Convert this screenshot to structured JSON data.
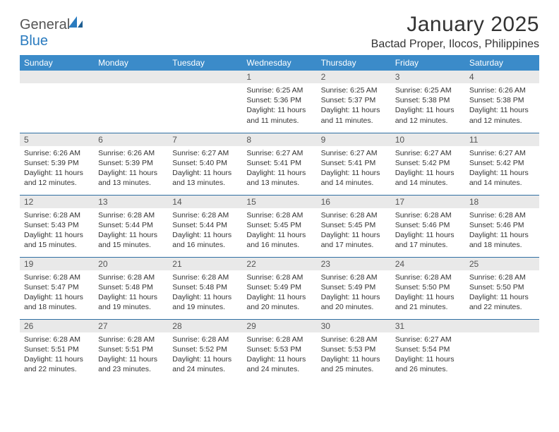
{
  "brand": {
    "part1": "General",
    "part2": "Blue"
  },
  "title": "January 2025",
  "location": "Bactad Proper, Ilocos, Philippines",
  "colors": {
    "header_bg": "#3b8bc9",
    "header_fg": "#ffffff",
    "daynum_bg": "#e9e9e9",
    "rule": "#2f6fa3",
    "logo_blue": "#2a7bbf",
    "text": "#333333"
  },
  "day_headers": [
    "Sunday",
    "Monday",
    "Tuesday",
    "Wednesday",
    "Thursday",
    "Friday",
    "Saturday"
  ],
  "weeks": [
    [
      null,
      null,
      null,
      {
        "n": "1",
        "sr": "Sunrise: 6:25 AM",
        "ss": "Sunset: 5:36 PM",
        "d1": "Daylight: 11 hours",
        "d2": "and 11 minutes."
      },
      {
        "n": "2",
        "sr": "Sunrise: 6:25 AM",
        "ss": "Sunset: 5:37 PM",
        "d1": "Daylight: 11 hours",
        "d2": "and 11 minutes."
      },
      {
        "n": "3",
        "sr": "Sunrise: 6:25 AM",
        "ss": "Sunset: 5:38 PM",
        "d1": "Daylight: 11 hours",
        "d2": "and 12 minutes."
      },
      {
        "n": "4",
        "sr": "Sunrise: 6:26 AM",
        "ss": "Sunset: 5:38 PM",
        "d1": "Daylight: 11 hours",
        "d2": "and 12 minutes."
      }
    ],
    [
      {
        "n": "5",
        "sr": "Sunrise: 6:26 AM",
        "ss": "Sunset: 5:39 PM",
        "d1": "Daylight: 11 hours",
        "d2": "and 12 minutes."
      },
      {
        "n": "6",
        "sr": "Sunrise: 6:26 AM",
        "ss": "Sunset: 5:39 PM",
        "d1": "Daylight: 11 hours",
        "d2": "and 13 minutes."
      },
      {
        "n": "7",
        "sr": "Sunrise: 6:27 AM",
        "ss": "Sunset: 5:40 PM",
        "d1": "Daylight: 11 hours",
        "d2": "and 13 minutes."
      },
      {
        "n": "8",
        "sr": "Sunrise: 6:27 AM",
        "ss": "Sunset: 5:41 PM",
        "d1": "Daylight: 11 hours",
        "d2": "and 13 minutes."
      },
      {
        "n": "9",
        "sr": "Sunrise: 6:27 AM",
        "ss": "Sunset: 5:41 PM",
        "d1": "Daylight: 11 hours",
        "d2": "and 14 minutes."
      },
      {
        "n": "10",
        "sr": "Sunrise: 6:27 AM",
        "ss": "Sunset: 5:42 PM",
        "d1": "Daylight: 11 hours",
        "d2": "and 14 minutes."
      },
      {
        "n": "11",
        "sr": "Sunrise: 6:27 AM",
        "ss": "Sunset: 5:42 PM",
        "d1": "Daylight: 11 hours",
        "d2": "and 14 minutes."
      }
    ],
    [
      {
        "n": "12",
        "sr": "Sunrise: 6:28 AM",
        "ss": "Sunset: 5:43 PM",
        "d1": "Daylight: 11 hours",
        "d2": "and 15 minutes."
      },
      {
        "n": "13",
        "sr": "Sunrise: 6:28 AM",
        "ss": "Sunset: 5:44 PM",
        "d1": "Daylight: 11 hours",
        "d2": "and 15 minutes."
      },
      {
        "n": "14",
        "sr": "Sunrise: 6:28 AM",
        "ss": "Sunset: 5:44 PM",
        "d1": "Daylight: 11 hours",
        "d2": "and 16 minutes."
      },
      {
        "n": "15",
        "sr": "Sunrise: 6:28 AM",
        "ss": "Sunset: 5:45 PM",
        "d1": "Daylight: 11 hours",
        "d2": "and 16 minutes."
      },
      {
        "n": "16",
        "sr": "Sunrise: 6:28 AM",
        "ss": "Sunset: 5:45 PM",
        "d1": "Daylight: 11 hours",
        "d2": "and 17 minutes."
      },
      {
        "n": "17",
        "sr": "Sunrise: 6:28 AM",
        "ss": "Sunset: 5:46 PM",
        "d1": "Daylight: 11 hours",
        "d2": "and 17 minutes."
      },
      {
        "n": "18",
        "sr": "Sunrise: 6:28 AM",
        "ss": "Sunset: 5:46 PM",
        "d1": "Daylight: 11 hours",
        "d2": "and 18 minutes."
      }
    ],
    [
      {
        "n": "19",
        "sr": "Sunrise: 6:28 AM",
        "ss": "Sunset: 5:47 PM",
        "d1": "Daylight: 11 hours",
        "d2": "and 18 minutes."
      },
      {
        "n": "20",
        "sr": "Sunrise: 6:28 AM",
        "ss": "Sunset: 5:48 PM",
        "d1": "Daylight: 11 hours",
        "d2": "and 19 minutes."
      },
      {
        "n": "21",
        "sr": "Sunrise: 6:28 AM",
        "ss": "Sunset: 5:48 PM",
        "d1": "Daylight: 11 hours",
        "d2": "and 19 minutes."
      },
      {
        "n": "22",
        "sr": "Sunrise: 6:28 AM",
        "ss": "Sunset: 5:49 PM",
        "d1": "Daylight: 11 hours",
        "d2": "and 20 minutes."
      },
      {
        "n": "23",
        "sr": "Sunrise: 6:28 AM",
        "ss": "Sunset: 5:49 PM",
        "d1": "Daylight: 11 hours",
        "d2": "and 20 minutes."
      },
      {
        "n": "24",
        "sr": "Sunrise: 6:28 AM",
        "ss": "Sunset: 5:50 PM",
        "d1": "Daylight: 11 hours",
        "d2": "and 21 minutes."
      },
      {
        "n": "25",
        "sr": "Sunrise: 6:28 AM",
        "ss": "Sunset: 5:50 PM",
        "d1": "Daylight: 11 hours",
        "d2": "and 22 minutes."
      }
    ],
    [
      {
        "n": "26",
        "sr": "Sunrise: 6:28 AM",
        "ss": "Sunset: 5:51 PM",
        "d1": "Daylight: 11 hours",
        "d2": "and 22 minutes."
      },
      {
        "n": "27",
        "sr": "Sunrise: 6:28 AM",
        "ss": "Sunset: 5:51 PM",
        "d1": "Daylight: 11 hours",
        "d2": "and 23 minutes."
      },
      {
        "n": "28",
        "sr": "Sunrise: 6:28 AM",
        "ss": "Sunset: 5:52 PM",
        "d1": "Daylight: 11 hours",
        "d2": "and 24 minutes."
      },
      {
        "n": "29",
        "sr": "Sunrise: 6:28 AM",
        "ss": "Sunset: 5:53 PM",
        "d1": "Daylight: 11 hours",
        "d2": "and 24 minutes."
      },
      {
        "n": "30",
        "sr": "Sunrise: 6:28 AM",
        "ss": "Sunset: 5:53 PM",
        "d1": "Daylight: 11 hours",
        "d2": "and 25 minutes."
      },
      {
        "n": "31",
        "sr": "Sunrise: 6:27 AM",
        "ss": "Sunset: 5:54 PM",
        "d1": "Daylight: 11 hours",
        "d2": "and 26 minutes."
      },
      null
    ]
  ]
}
